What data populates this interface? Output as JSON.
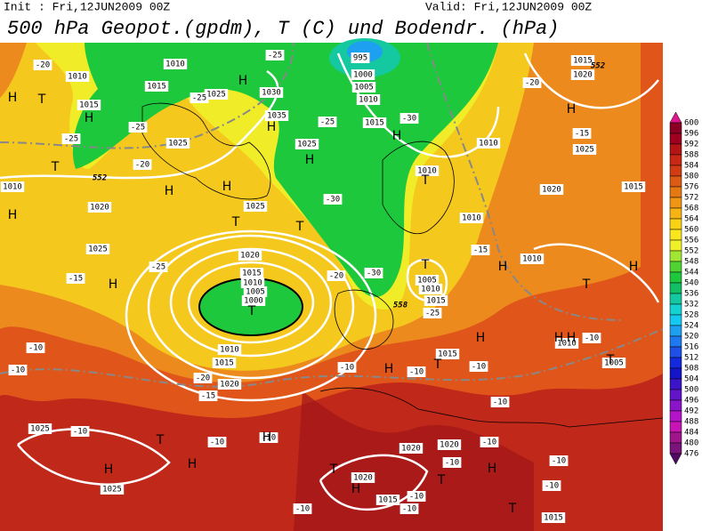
{
  "header": {
    "init": "Init : Fri,12JUN2009 00Z",
    "valid": "Valid: Fri,12JUN2009 00Z",
    "title": "500 hPa Geopot.(gpdm), T (C) und Bodendr. (hPa)"
  },
  "legend": {
    "labels": [
      600,
      596,
      592,
      588,
      584,
      580,
      576,
      572,
      568,
      564,
      560,
      556,
      552,
      548,
      544,
      540,
      536,
      532,
      528,
      524,
      520,
      516,
      512,
      508,
      504,
      500,
      496,
      492,
      488,
      484,
      480,
      476
    ],
    "colors": [
      "#8b0022",
      "#a00020",
      "#b41414",
      "#c82814",
      "#d23c14",
      "#dc5a14",
      "#e67814",
      "#f09614",
      "#f5b414",
      "#fad214",
      "#fae61e",
      "#f0f028",
      "#a0e632",
      "#50d232",
      "#1ec83c",
      "#14be64",
      "#14c8a0",
      "#14d2d2",
      "#14c8f0",
      "#1ea0f0",
      "#1e78f0",
      "#1e50e6",
      "#1428dc",
      "#1414c8",
      "#3c14c8",
      "#6414c8",
      "#8c14c8",
      "#b414c8",
      "#c814b4",
      "#a0148c",
      "#7a147a"
    ]
  },
  "map": {
    "pressure_labels": [
      "1010",
      "1010",
      "1015",
      "1015",
      "1025",
      "1030",
      "1035",
      "1025",
      "1025",
      "995",
      "1000",
      "1005",
      "1010",
      "1015",
      "1010",
      "1010",
      "1010",
      "1015",
      "1020",
      "1025",
      "1020",
      "1015",
      "1010",
      "1020",
      "1025",
      "1025",
      "1020",
      "1015",
      "1010",
      "1005",
      "1000",
      "1010",
      "1015",
      "1020",
      "1010",
      "1005",
      "1010",
      "1015",
      "1015",
      "1010",
      "1005",
      "1025",
      "1025",
      "1020",
      "1020",
      "1020",
      "1015",
      "1015"
    ],
    "temperature_labels": [
      "-20",
      "-25",
      "-25",
      "-25",
      "-25",
      "-20",
      "-25",
      "-30",
      "-30",
      "-25",
      "-15",
      "-20",
      "-30",
      "-25",
      "-15",
      "-20",
      "-15",
      "-10",
      "-10",
      "-10",
      "-10",
      "-10",
      "-15",
      "-20",
      "-10",
      "-10",
      "-10",
      "-10",
      "-10",
      "-10",
      "-10",
      "-10",
      "-10",
      "-10",
      "-10",
      "-10"
    ],
    "height_labels": [
      "552",
      "558",
      "552"
    ],
    "markers": [
      "H",
      "T",
      "H",
      "T",
      "H",
      "H",
      "T",
      "H",
      "H",
      "H",
      "H",
      "H",
      "T",
      "T",
      "H",
      "T",
      "T",
      "H",
      "H",
      "T",
      "H",
      "H",
      "T",
      "H",
      "T",
      "H",
      "H",
      "T",
      "H",
      "H",
      "H",
      "T",
      "H",
      "T",
      "H",
      "T"
    ]
  }
}
